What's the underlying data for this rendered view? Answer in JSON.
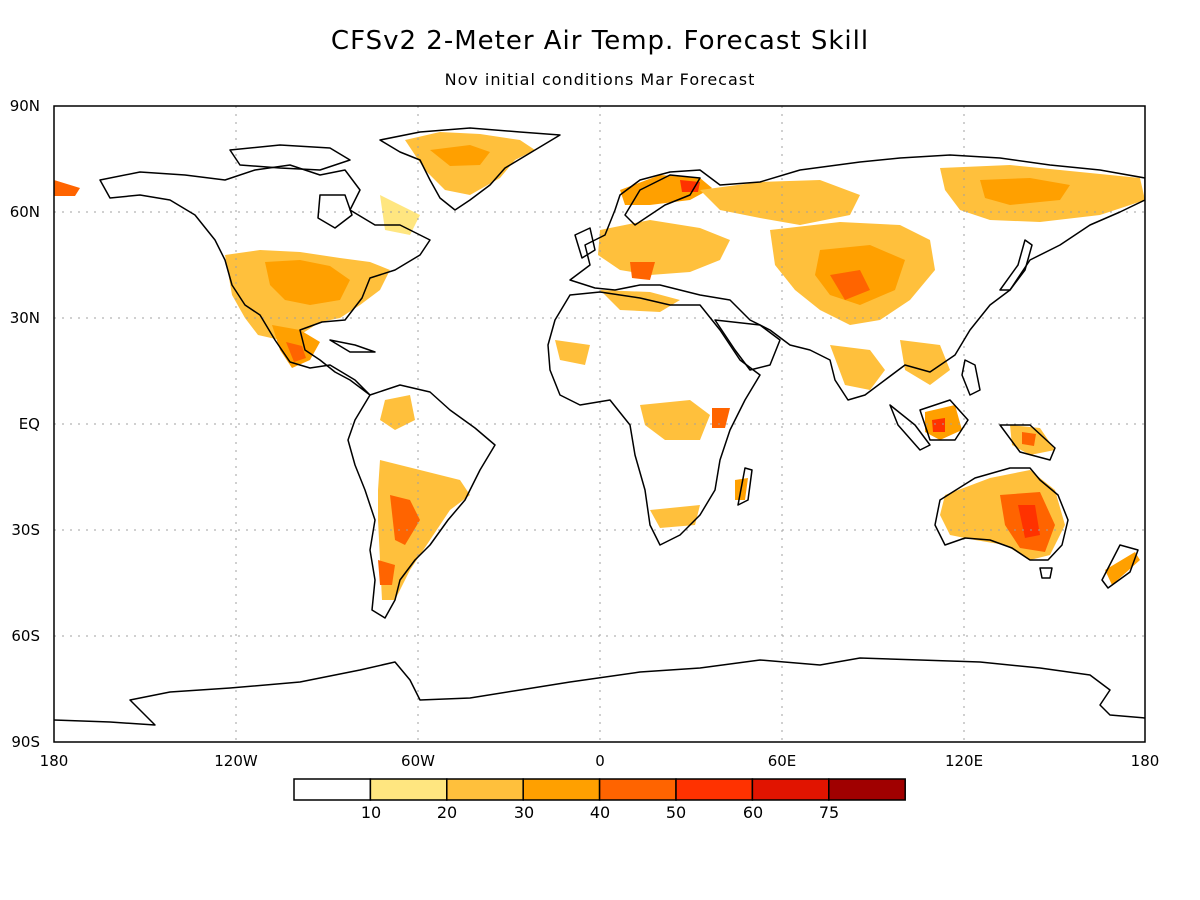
{
  "title": "CFSv2 2-Meter Air Temp. Forecast Skill",
  "subtitle": "Nov initial conditions   Mar Forecast",
  "axes": {
    "lat_labels": [
      "90N",
      "60N",
      "30N",
      "EQ",
      "30S",
      "60S",
      "90S"
    ],
    "lon_labels": [
      "180",
      "120W",
      "60W",
      "0",
      "60E",
      "120E",
      "180"
    ]
  },
  "colorbar": {
    "labels": [
      "10",
      "20",
      "30",
      "40",
      "50",
      "60",
      "75"
    ],
    "colors": [
      "#ffffff",
      "#ffe680",
      "#ffc03c",
      "#ffa000",
      "#ff6400",
      "#ff3200",
      "#e11400",
      "#a00000"
    ]
  },
  "map": {
    "projection": "equirectangular",
    "lat_range": [
      -90,
      90
    ],
    "lon_range": [
      -180,
      180
    ],
    "grid": true,
    "variable": "2-meter air temperature forecast skill",
    "colors": {
      "coastline": "#000000",
      "grid": "#a0a0a0"
    }
  }
}
